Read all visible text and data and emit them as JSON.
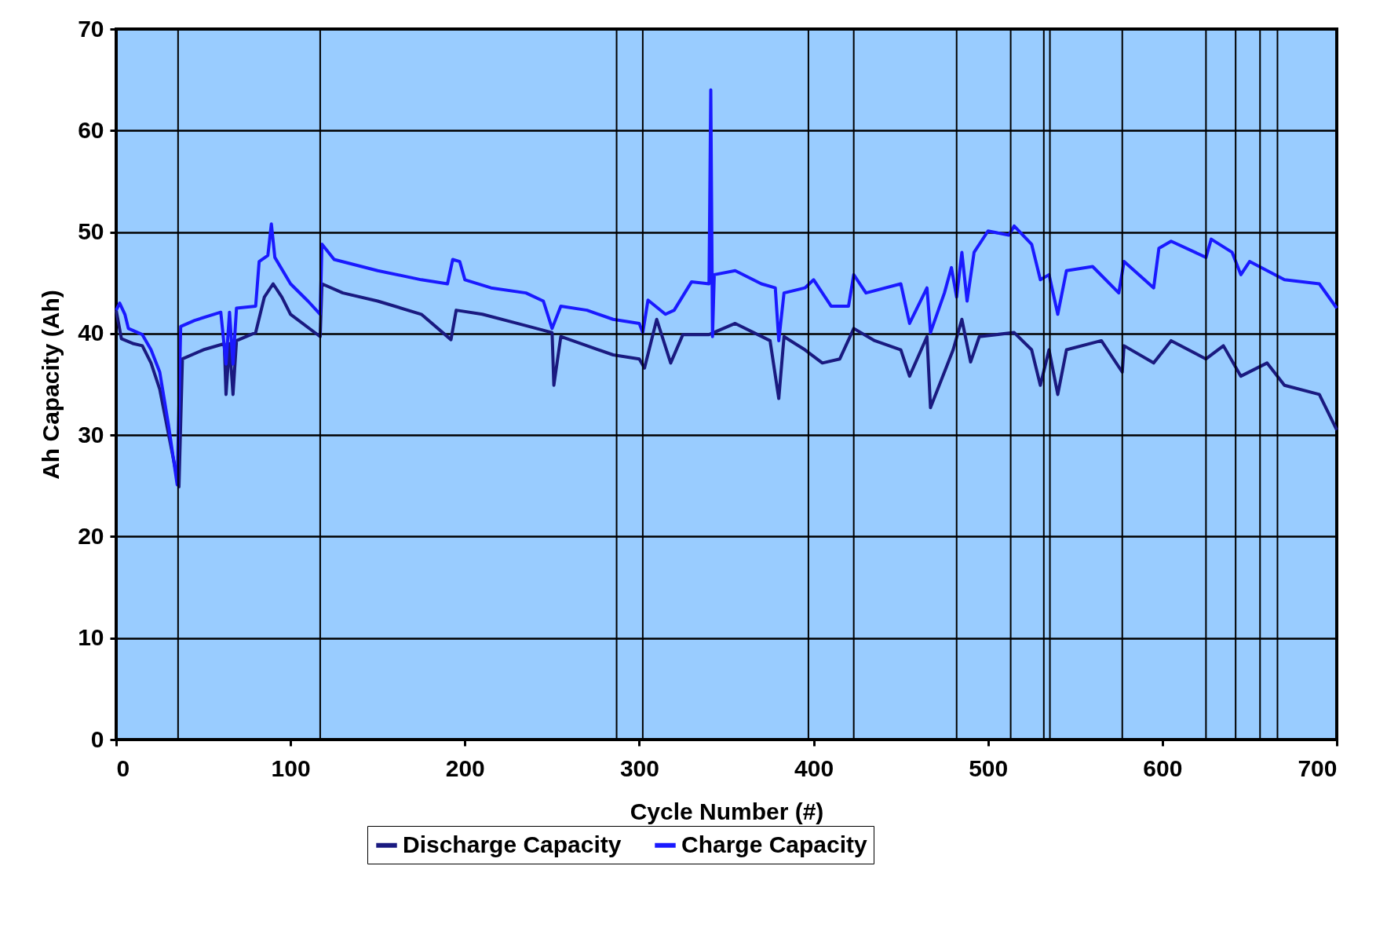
{
  "chart_data": {
    "type": "line",
    "xlabel": "Cycle Number (#)",
    "ylabel": "Ah Capacity (Ah)",
    "xlim": [
      0,
      700
    ],
    "xticks": [
      0,
      100,
      200,
      300,
      400,
      500,
      600,
      700
    ],
    "ylim": [
      0,
      70
    ],
    "yticks": [
      0,
      10,
      20,
      30,
      40,
      50,
      60,
      70
    ],
    "grid": "y",
    "legend": "bottom",
    "marker": "none",
    "line_style": "solid",
    "ref_lines": [
      {
        "axis": "x",
        "value": 35.5,
        "color": "#000000"
      },
      {
        "axis": "x",
        "value": 117,
        "color": "#000000"
      },
      {
        "axis": "x",
        "value": 287,
        "color": "#000000"
      },
      {
        "axis": "x",
        "value": 302,
        "color": "#000000"
      },
      {
        "axis": "x",
        "value": 397,
        "color": "#000000"
      },
      {
        "axis": "x",
        "value": 423,
        "color": "#000000"
      },
      {
        "axis": "x",
        "value": 482,
        "color": "#000000"
      },
      {
        "axis": "x",
        "value": 513,
        "color": "#000000"
      },
      {
        "axis": "x",
        "value": 532,
        "color": "#000000"
      },
      {
        "axis": "x",
        "value": 535.5,
        "color": "#000000"
      },
      {
        "axis": "x",
        "value": 577,
        "color": "#000000"
      },
      {
        "axis": "x",
        "value": 625,
        "color": "#000000"
      },
      {
        "axis": "x",
        "value": 642,
        "color": "#000000"
      },
      {
        "axis": "x",
        "value": 656,
        "color": "#000000"
      },
      {
        "axis": "x",
        "value": 666,
        "color": "#000000"
      }
    ],
    "series": [
      {
        "name": "Discharge Capacity",
        "color": "#1a1a80",
        "x": [
          0,
          3,
          10,
          15,
          20,
          25,
          30,
          36,
          38,
          50,
          62,
          63,
          65,
          67,
          69,
          80,
          85,
          90,
          95,
          100,
          117,
          118,
          130,
          150,
          175,
          192,
          195,
          210,
          230,
          250,
          251,
          255,
          270,
          285,
          300,
          303,
          310,
          318,
          325,
          340,
          355,
          375,
          380,
          383,
          395,
          405,
          415,
          423,
          435,
          450,
          455,
          465,
          467,
          480,
          485,
          490,
          495,
          515,
          525,
          530,
          535,
          540,
          545,
          565,
          577,
          578,
          595,
          605,
          625,
          635,
          645,
          660,
          670,
          690,
          700
        ],
        "values": [
          42.3,
          39.5,
          39,
          38.8,
          37.1,
          34.5,
          30.1,
          24.9,
          37.5,
          38.4,
          39,
          34,
          39,
          34,
          39.3,
          40.1,
          43.6,
          44.9,
          43.6,
          41.9,
          39.7,
          44.9,
          44,
          43.2,
          41.9,
          39.4,
          42.3,
          41.9,
          41,
          40.1,
          34.9,
          39.7,
          38.8,
          37.9,
          37.5,
          36.6,
          41.4,
          37.1,
          39.9,
          39.9,
          41,
          39.3,
          33.6,
          39.7,
          38.4,
          37.1,
          37.5,
          40.5,
          39.3,
          38.4,
          35.8,
          39.7,
          32.7,
          38.4,
          41.4,
          37.2,
          39.7,
          40.1,
          38.4,
          34.9,
          38.4,
          34,
          38.4,
          39.3,
          36.2,
          38.8,
          37.1,
          39.3,
          37.5,
          38.8,
          35.8,
          37.1,
          34.9,
          34,
          30.5
        ]
      },
      {
        "name": "Charge Capacity",
        "color": "#1a1aff",
        "x": [
          0,
          2,
          5,
          7,
          15,
          20,
          25,
          30,
          35,
          37,
          45,
          60,
          63,
          65,
          67,
          69,
          80,
          82,
          87,
          89,
          91,
          100,
          110,
          117,
          118,
          125,
          150,
          175,
          190,
          193,
          197,
          200,
          215,
          235,
          245,
          250,
          255,
          270,
          285,
          300,
          302,
          305,
          315,
          320,
          330,
          340,
          341,
          342,
          343,
          355,
          370,
          378,
          380,
          383,
          395,
          400,
          410,
          420,
          423,
          430,
          450,
          455,
          465,
          467,
          475,
          479,
          482,
          485,
          488,
          492,
          500,
          512,
          515,
          525,
          530,
          535,
          540,
          545,
          560,
          575,
          578,
          595,
          598,
          605,
          625,
          628,
          640,
          645,
          650,
          670,
          690,
          700
        ],
        "values": [
          42.3,
          43,
          41.9,
          40.5,
          39.9,
          38.4,
          36.2,
          31,
          25.1,
          40.7,
          41.3,
          42.1,
          37,
          42.1,
          37,
          42.5,
          42.7,
          47.1,
          47.7,
          50.8,
          47.5,
          44.9,
          43.2,
          41.9,
          48.8,
          47.3,
          46.2,
          45.3,
          44.9,
          47.3,
          47.1,
          45.3,
          44.5,
          44,
          43.2,
          40.5,
          42.7,
          42.3,
          41.4,
          41,
          40.1,
          43.3,
          41.9,
          42.3,
          45.1,
          44.9,
          64,
          39.7,
          45.8,
          46.2,
          44.9,
          44.5,
          39.3,
          44,
          44.5,
          45.3,
          42.7,
          42.7,
          45.8,
          44,
          44.9,
          41,
          44.5,
          40.1,
          44,
          46.5,
          43.6,
          48,
          43.2,
          48,
          50.1,
          49.7,
          50.6,
          48.8,
          45.3,
          45.8,
          41.9,
          46.2,
          46.6,
          44,
          47.1,
          44.5,
          48.4,
          49.1,
          47.5,
          49.3,
          48,
          45.8,
          47.1,
          45.3,
          44.9,
          42.5
        ]
      }
    ]
  }
}
